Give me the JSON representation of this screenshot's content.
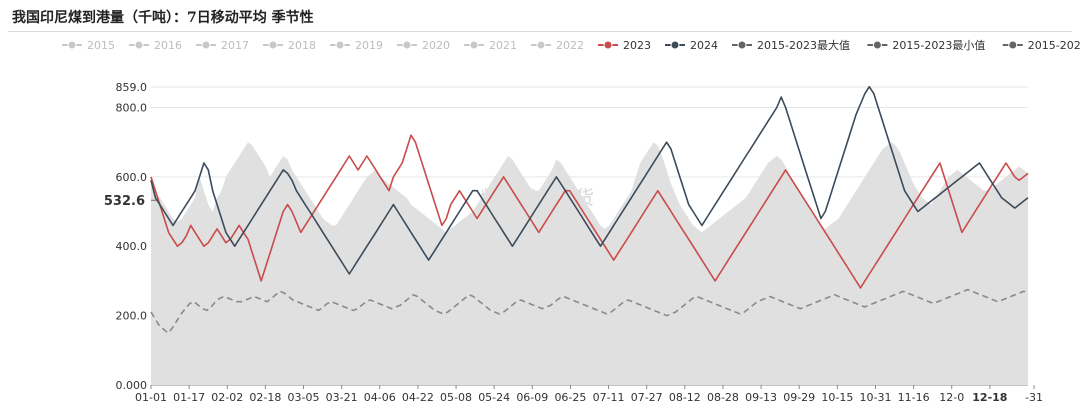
{
  "title": "我国印尼煤到港量（千吨）：7日移动平均 季节性",
  "chart_data": {
    "type": "line",
    "title": "我国印尼煤到港量（千吨）：7日移动平均 季节性",
    "ylim": [
      0,
      859.0
    ],
    "yticks": [
      "0.000",
      "200.0",
      "400.0",
      "600.0",
      "800.0",
      "859.0"
    ],
    "x_ticks": [
      "01-01",
      "01-17",
      "02-02",
      "02-18",
      "03-05",
      "03-21",
      "04-06",
      "04-22",
      "05-08",
      "05-24",
      "06-09",
      "06-25",
      "07-11",
      "07-27",
      "08-12",
      "08-28",
      "09-13",
      "09-29",
      "10-15",
      "10-31",
      "11-16",
      "12-0",
      "12-18",
      "-31"
    ],
    "highlight_x": "12-18",
    "highlight_y": "532.6",
    "watermark": "紫金天风期货",
    "legend": [
      {
        "name": "2015",
        "active": false,
        "color": "#c8c8c8"
      },
      {
        "name": "2016",
        "active": false,
        "color": "#c8c8c8"
      },
      {
        "name": "2017",
        "active": false,
        "color": "#c8c8c8"
      },
      {
        "name": "2018",
        "active": false,
        "color": "#c8c8c8"
      },
      {
        "name": "2019",
        "active": false,
        "color": "#c8c8c8"
      },
      {
        "name": "2020",
        "active": false,
        "color": "#c8c8c8"
      },
      {
        "name": "2021",
        "active": false,
        "color": "#c8c8c8"
      },
      {
        "name": "2022",
        "active": false,
        "color": "#c8c8c8"
      },
      {
        "name": "2023",
        "active": true,
        "color": "#c94b4b"
      },
      {
        "name": "2024",
        "active": true,
        "color": "#3c4b5a"
      },
      {
        "name": "2015-2023最大值",
        "active": true,
        "color": "#646464"
      },
      {
        "name": "2015-2023最小值",
        "active": true,
        "color": "#646464"
      },
      {
        "name": "2015-2023均值",
        "active": true,
        "color": "#646464"
      }
    ],
    "series": [
      {
        "name": "2015-2023最大值",
        "color": "#e0e0e0",
        "kind": "area",
        "values": [
          580,
          560,
          540,
          520,
          500,
          480,
          470,
          480,
          500,
          520,
          540,
          600,
          560,
          520,
          500,
          540,
          560,
          600,
          620,
          640,
          660,
          680,
          700,
          690,
          670,
          650,
          630,
          600,
          620,
          640,
          660,
          650,
          620,
          600,
          580,
          560,
          540,
          520,
          500,
          480,
          470,
          460,
          460,
          480,
          500,
          520,
          540,
          560,
          580,
          600,
          610,
          620,
          600,
          590,
          580,
          570,
          560,
          550,
          540,
          520,
          510,
          500,
          490,
          480,
          470,
          460,
          450,
          440,
          450,
          460,
          470,
          480,
          490,
          500,
          520,
          540,
          560,
          580,
          600,
          620,
          640,
          660,
          650,
          630,
          610,
          590,
          570,
          560,
          560,
          580,
          600,
          620,
          650,
          640,
          620,
          600,
          580,
          560,
          540,
          520,
          500,
          480,
          460,
          450,
          460,
          480,
          500,
          520,
          540,
          560,
          600,
          640,
          660,
          680,
          700,
          690,
          660,
          620,
          580,
          550,
          520,
          500,
          480,
          460,
          450,
          440,
          450,
          460,
          470,
          480,
          490,
          500,
          510,
          520,
          530,
          540,
          560,
          580,
          600,
          620,
          640,
          650,
          660,
          650,
          630,
          600,
          580,
          560,
          540,
          520,
          500,
          480,
          460,
          450,
          460,
          470,
          480,
          500,
          520,
          540,
          560,
          580,
          600,
          620,
          640,
          660,
          680,
          690,
          700,
          690,
          670,
          640,
          610,
          580,
          560,
          540,
          530,
          520,
          540,
          560,
          580,
          600,
          610,
          620,
          610,
          600,
          590,
          580,
          570,
          560,
          560,
          570,
          580,
          590,
          600,
          610,
          620,
          630,
          620,
          610
        ]
      },
      {
        "name": "2015-2023均值",
        "color": "#8a8a8a",
        "kind": "dash",
        "values": [
          210,
          190,
          170,
          160,
          150,
          165,
          185,
          205,
          220,
          235,
          240,
          230,
          220,
          215,
          225,
          240,
          250,
          255,
          250,
          245,
          240,
          240,
          245,
          250,
          255,
          250,
          245,
          240,
          250,
          260,
          270,
          265,
          255,
          245,
          240,
          235,
          230,
          225,
          220,
          215,
          225,
          235,
          240,
          235,
          230,
          225,
          220,
          215,
          220,
          230,
          240,
          245,
          240,
          235,
          230,
          225,
          220,
          225,
          230,
          240,
          250,
          260,
          255,
          245,
          235,
          225,
          215,
          210,
          205,
          210,
          220,
          230,
          240,
          250,
          260,
          255,
          245,
          235,
          225,
          215,
          210,
          205,
          210,
          220,
          230,
          240,
          245,
          240,
          235,
          230,
          225,
          220,
          225,
          230,
          240,
          250,
          255,
          250,
          245,
          240,
          235,
          230,
          225,
          220,
          215,
          210,
          205,
          210,
          220,
          230,
          240,
          245,
          240,
          235,
          230,
          225,
          220,
          215,
          210,
          205,
          200,
          205,
          210,
          220,
          230,
          240,
          250,
          255,
          250,
          245,
          240,
          235,
          230,
          225,
          220,
          215,
          210,
          205,
          210,
          220,
          230,
          240,
          245,
          250,
          255,
          250,
          245,
          240,
          235,
          230,
          225,
          220,
          225,
          230,
          235,
          240,
          245,
          250,
          255,
          260,
          255,
          250,
          245,
          240,
          235,
          230,
          225,
          230,
          235,
          240,
          245,
          250,
          255,
          260,
          265,
          270,
          265,
          260,
          255,
          250,
          245,
          240,
          235,
          240,
          245,
          250,
          255,
          260,
          265,
          270,
          275,
          270,
          265,
          260,
          255,
          250,
          245,
          240,
          245,
          250,
          255,
          260,
          265,
          270,
          265
        ]
      },
      {
        "name": "2023",
        "color": "#c94b4b",
        "kind": "line",
        "values": [
          600,
          560,
          520,
          480,
          440,
          420,
          400,
          410,
          430,
          460,
          440,
          420,
          400,
          410,
          430,
          450,
          430,
          410,
          420,
          440,
          460,
          440,
          420,
          380,
          340,
          300,
          340,
          380,
          420,
          460,
          500,
          520,
          500,
          470,
          440,
          460,
          480,
          500,
          520,
          540,
          560,
          580,
          600,
          620,
          640,
          660,
          640,
          620,
          640,
          660,
          640,
          620,
          600,
          580,
          560,
          600,
          620,
          640,
          680,
          720,
          700,
          660,
          620,
          580,
          540,
          500,
          460,
          480,
          520,
          540,
          560,
          540,
          520,
          500,
          480,
          500,
          520,
          540,
          560,
          580,
          600,
          580,
          560,
          540,
          520,
          500,
          480,
          460,
          440,
          460,
          480,
          500,
          520,
          540,
          560,
          560,
          540,
          520,
          500,
          480,
          460,
          440,
          420,
          400,
          380,
          360,
          380,
          400,
          420,
          440,
          460,
          480,
          500,
          520,
          540,
          560,
          540,
          520,
          500,
          480,
          460,
          440,
          420,
          400,
          380,
          360,
          340,
          320,
          300,
          320,
          340,
          360,
          380,
          400,
          420,
          440,
          460,
          480,
          500,
          520,
          540,
          560,
          580,
          600,
          620,
          600,
          580,
          560,
          540,
          520,
          500,
          480,
          460,
          440,
          420,
          400,
          380,
          360,
          340,
          320,
          300,
          280,
          300,
          320,
          340,
          360,
          380,
          400,
          420,
          440,
          460,
          480,
          500,
          520,
          540,
          560,
          580,
          600,
          620,
          640,
          600,
          560,
          520,
          480,
          440,
          460,
          480,
          500,
          520,
          540,
          560,
          580,
          600,
          620,
          640,
          620,
          600,
          590,
          600,
          610
        ]
      },
      {
        "name": "2024",
        "color": "#3c4b5a",
        "kind": "line",
        "values": [
          590,
          540,
          520,
          500,
          480,
          460,
          480,
          500,
          520,
          540,
          560,
          600,
          640,
          620,
          560,
          520,
          480,
          440,
          420,
          400,
          420,
          440,
          460,
          480,
          500,
          520,
          540,
          560,
          580,
          600,
          620,
          610,
          590,
          560,
          540,
          520,
          500,
          480,
          460,
          440,
          420,
          400,
          380,
          360,
          340,
          320,
          340,
          360,
          380,
          400,
          420,
          440,
          460,
          480,
          500,
          520,
          500,
          480,
          460,
          440,
          420,
          400,
          380,
          360,
          380,
          400,
          420,
          440,
          460,
          480,
          500,
          520,
          540,
          560,
          560,
          540,
          520,
          500,
          480,
          460,
          440,
          420,
          400,
          420,
          440,
          460,
          480,
          500,
          520,
          540,
          560,
          580,
          600,
          580,
          560,
          540,
          520,
          500,
          480,
          460,
          440,
          420,
          400,
          420,
          440,
          460,
          480,
          500,
          520,
          540,
          560,
          580,
          600,
          620,
          640,
          660,
          680,
          700,
          680,
          640,
          600,
          560,
          520,
          500,
          480,
          460,
          480,
          500,
          520,
          540,
          560,
          580,
          600,
          620,
          640,
          660,
          680,
          700,
          720,
          740,
          760,
          780,
          800,
          830,
          800,
          760,
          720,
          680,
          640,
          600,
          560,
          520,
          480,
          500,
          540,
          580,
          620,
          660,
          700,
          740,
          780,
          810,
          840,
          860,
          840,
          800,
          760,
          720,
          680,
          640,
          600,
          560,
          540,
          520,
          500,
          510,
          520,
          530,
          540,
          550,
          560,
          570,
          580,
          590,
          600,
          610,
          620,
          630,
          640,
          620,
          600,
          580,
          560,
          540,
          530,
          520,
          510,
          520,
          530,
          540
        ]
      }
    ]
  }
}
